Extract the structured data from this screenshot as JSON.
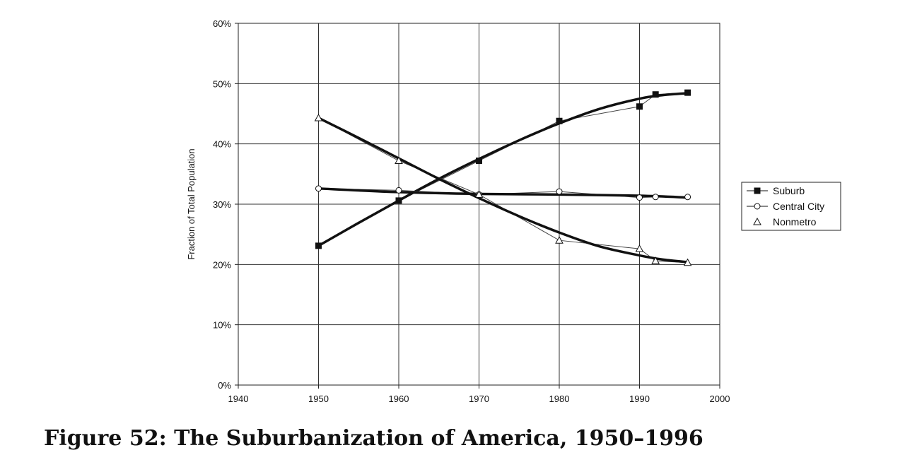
{
  "caption": "Figure 52: The Suburbanization of America, 1950–1996",
  "chart_data": {
    "type": "scatter",
    "title": "",
    "xlabel": "",
    "ylabel": "Fraction of Total Population",
    "xlim": [
      1940,
      2000
    ],
    "ylim": [
      0,
      60
    ],
    "xticks": [
      1940,
      1950,
      1960,
      1970,
      1980,
      1990,
      2000
    ],
    "yticks": [
      0,
      10,
      20,
      30,
      40,
      50,
      60
    ],
    "ytick_labels": [
      "0%",
      "10%",
      "20%",
      "30%",
      "40%",
      "50%",
      "60%"
    ],
    "grid": true,
    "legend_position": "right",
    "series": [
      {
        "name": "Suburb",
        "marker": "square-filled",
        "x": [
          1950,
          1960,
          1970,
          1980,
          1990,
          1992,
          1996
        ],
        "y": [
          23.1,
          30.6,
          37.2,
          43.8,
          46.2,
          48.2,
          48.5
        ],
        "trend_x": [
          1950,
          1955,
          1960,
          1965,
          1970,
          1975,
          1980,
          1985,
          1990,
          1993,
          1996
        ],
        "trend_y": [
          23.1,
          26.9,
          30.6,
          34.2,
          37.5,
          40.6,
          43.4,
          45.8,
          47.5,
          48.1,
          48.4
        ]
      },
      {
        "name": "Central City",
        "marker": "circle-open",
        "x": [
          1950,
          1960,
          1970,
          1980,
          1990,
          1992,
          1996
        ],
        "y": [
          32.6,
          32.3,
          31.6,
          32.1,
          31.1,
          31.2,
          31.2
        ],
        "trend_x": [
          1950,
          1960,
          1970,
          1980,
          1990,
          1996
        ],
        "trend_y": [
          32.6,
          32.0,
          31.7,
          31.6,
          31.4,
          31.1
        ]
      },
      {
        "name": "Nonmetro",
        "marker": "triangle-open",
        "x": [
          1950,
          1960,
          1970,
          1980,
          1990,
          1992,
          1996
        ],
        "y": [
          44.3,
          37.2,
          31.6,
          24.0,
          22.6,
          20.6,
          20.3
        ],
        "trend_x": [
          1950,
          1955,
          1960,
          1965,
          1970,
          1975,
          1980,
          1985,
          1990,
          1993,
          1996
        ],
        "trend_y": [
          44.3,
          41.0,
          37.6,
          34.2,
          31.0,
          28.0,
          25.3,
          23.0,
          21.5,
          20.8,
          20.4
        ]
      }
    ]
  }
}
